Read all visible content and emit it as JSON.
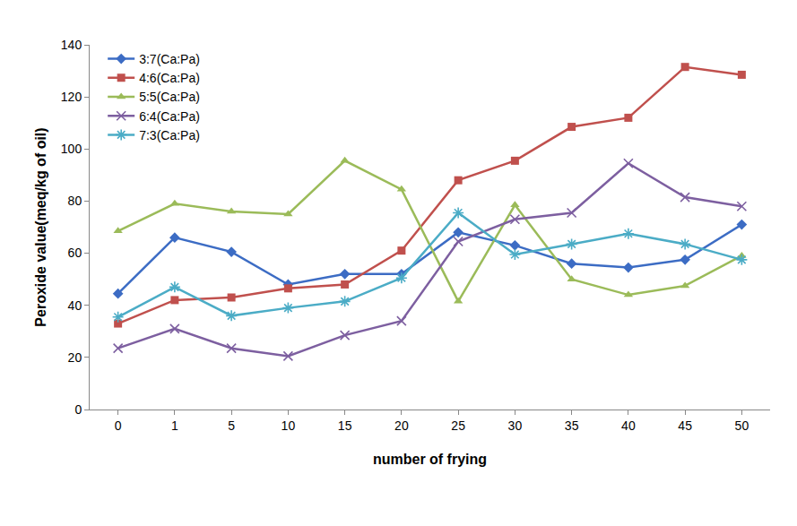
{
  "chart_data": {
    "type": "line",
    "x_label": "number of frying",
    "y_label": "Peroxide value(meq/kg of oil)",
    "categories": [
      "0",
      "1",
      "5",
      "10",
      "15",
      "20",
      "25",
      "30",
      "35",
      "40",
      "45",
      "50"
    ],
    "ylim": [
      0,
      140
    ],
    "yticks": [
      0,
      20,
      40,
      60,
      80,
      100,
      120,
      140
    ],
    "grid": false,
    "legend": "top-left",
    "series": [
      {
        "name": "3:7(Ca:Pa)",
        "color": "#3c6cc4",
        "marker": "diamond",
        "values": [
          44.5,
          66,
          60.5,
          48,
          52,
          52,
          68,
          63,
          56,
          54.5,
          57.5,
          71
        ]
      },
      {
        "name": "4:6(Ca:Pa)",
        "color": "#c0504d",
        "marker": "square",
        "values": [
          33,
          42,
          43,
          46.5,
          48,
          61,
          88,
          95.5,
          108.5,
          112,
          131.5,
          128.5
        ]
      },
      {
        "name": "5:5(Ca:Pa)",
        "color": "#9bbb59",
        "marker": "triangle",
        "values": [
          68.5,
          79,
          76,
          75,
          95.5,
          84.5,
          41.5,
          78.5,
          50,
          44,
          47.5,
          59
        ]
      },
      {
        "name": "6:4(Ca:Pa)",
        "color": "#7d5fa0",
        "marker": "x",
        "values": [
          23.5,
          31,
          23.5,
          20.5,
          28.5,
          34,
          64.5,
          73,
          75.5,
          94.5,
          81.5,
          78
        ]
      },
      {
        "name": "7:3(Ca:Pa)",
        "color": "#4bacc6",
        "marker": "star",
        "values": [
          35.5,
          47,
          36,
          39,
          41.5,
          50.5,
          75.5,
          59.5,
          63.5,
          67.5,
          63.5,
          57.5
        ]
      }
    ]
  }
}
